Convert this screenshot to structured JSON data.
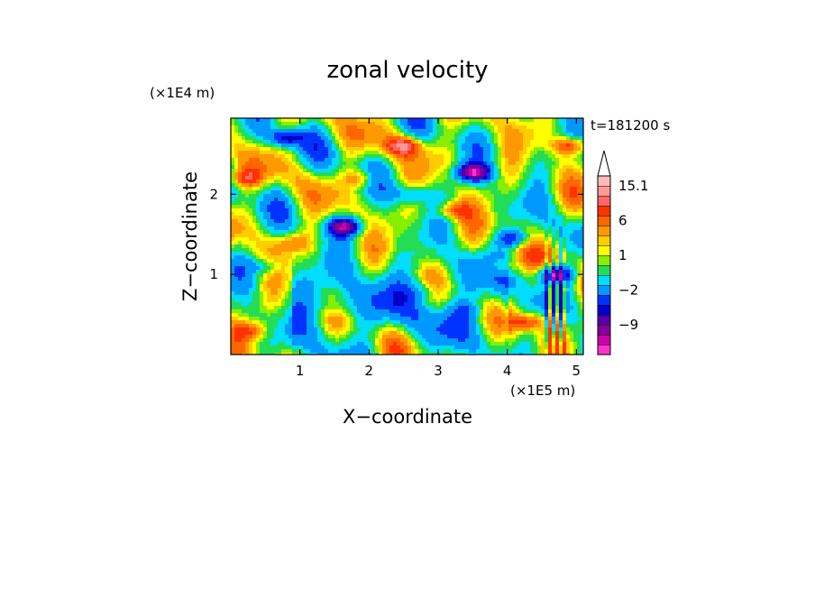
{
  "chart_data": {
    "type": "heatmap",
    "title": "zonal velocity",
    "xlabel": "X−coordinate",
    "ylabel": "Z−coordinate",
    "x_unit": "(×1E5 m)",
    "y_unit": "(×1E4 m)",
    "time_label": "t=181200 s",
    "xlim": [
      0,
      5.1
    ],
    "ylim": [
      0,
      2.95
    ],
    "x_ticks": [
      1,
      2,
      3,
      4,
      5
    ],
    "y_ticks": [
      1,
      2
    ],
    "colorbar": {
      "colors": [
        "#ff33cc",
        "#cc00aa",
        "#880099",
        "#5500aa",
        "#0000cc",
        "#0033ff",
        "#0099ff",
        "#00ddff",
        "#22dd55",
        "#88ee00",
        "#ffff00",
        "#ffcc00",
        "#ff9900",
        "#ff6600",
        "#ff3300",
        "#ff6666",
        "#ff9999",
        "#ffbbbb"
      ],
      "labels": [
        "−9",
        "−2",
        "1",
        "6",
        "15.1"
      ],
      "label_bins": [
        3,
        6.5,
        10,
        13.5,
        17
      ],
      "extend_max": true
    },
    "field_mean": 0.5,
    "field_features": [
      {
        "x": 1.65,
        "z": 1.6,
        "v": -12
      },
      {
        "x": 3.5,
        "z": 2.27,
        "v": -14
      },
      {
        "x": 0.8,
        "z": 2.7,
        "v": -9
      },
      {
        "x": 4.7,
        "z": 1.0,
        "v": -13
      },
      {
        "x": 4.1,
        "z": 1.45,
        "v": -8
      },
      {
        "x": 2.6,
        "z": 2.0,
        "v": -5
      },
      {
        "x": 0.5,
        "z": 1.1,
        "v": -4
      },
      {
        "x": 2.8,
        "z": 0.8,
        "v": -3
      },
      {
        "x": 1.5,
        "z": 0.6,
        "v": -2
      },
      {
        "x": 3.4,
        "z": 0.55,
        "v": -2.5
      },
      {
        "x": 0.3,
        "z": 0.3,
        "v": 5
      },
      {
        "x": 2.5,
        "z": 2.6,
        "v": 9
      },
      {
        "x": 3.2,
        "z": 1.8,
        "v": 6
      },
      {
        "x": 4.3,
        "z": 0.4,
        "v": 7
      },
      {
        "x": 0.2,
        "z": 2.2,
        "v": 6
      },
      {
        "x": 1.9,
        "z": 2.2,
        "v": 5
      },
      {
        "x": 4.9,
        "z": 2.6,
        "v": 8
      },
      {
        "x": 0.9,
        "z": 1.4,
        "v": 4
      },
      {
        "x": 3.9,
        "z": 1.1,
        "v": 4
      }
    ]
  }
}
